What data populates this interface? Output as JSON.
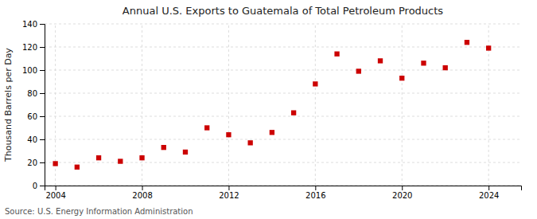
{
  "chart_data": {
    "type": "scatter",
    "title": "Annual U.S. Exports to Guatemala of Total Petroleum Products",
    "ylabel": "Thousand Barrels per Day",
    "annotations": [
      "Source: U.S. Energy Information Administration"
    ],
    "x": [
      2004,
      2005,
      2006,
      2007,
      2008,
      2009,
      2010,
      2011,
      2012,
      2013,
      2014,
      2015,
      2016,
      2017,
      2018,
      2019,
      2020,
      2021,
      2022,
      2023,
      2024
    ],
    "values": [
      19,
      16,
      24,
      21,
      24,
      33,
      29,
      50,
      44,
      37,
      46,
      63,
      88,
      114,
      99,
      108,
      93,
      106,
      102,
      124,
      119
    ],
    "color": "#cc0000",
    "marker": "square",
    "xlim": [
      2003.5,
      2025.5
    ],
    "xticks": [
      2004,
      2008,
      2012,
      2016,
      2020,
      2024
    ],
    "ylim": [
      0,
      140
    ],
    "yticks": [
      0,
      20,
      40,
      60,
      80,
      100,
      120,
      140
    ],
    "grid": true
  }
}
